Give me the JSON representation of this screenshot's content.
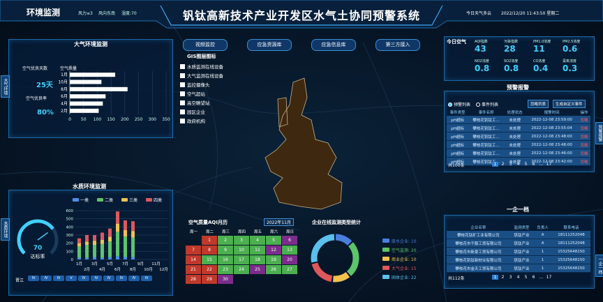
{
  "header": {
    "section": "环境监测",
    "wind_force": "风力≤3",
    "wind_dir": "风向东南",
    "humidity": "湿度:70",
    "title": "钒钛高新技术产业开发区水气土协同预警系统",
    "weather": "今日天气多云",
    "datetime": "2022/12/20 11:43:50 星期二"
  },
  "nav": [
    "视频监控",
    "应急资源库",
    "应急信息库",
    "第三方接入"
  ],
  "side_tabs": {
    "left": [
      "大气环境",
      "水质环境"
    ],
    "right": [
      "预警报警",
      "一企一档"
    ]
  },
  "air_panel": {
    "title": "大气环境监测",
    "good_days_label": "空气优良天数",
    "good_days": "25天",
    "good_rate_label": "空气优良率",
    "good_rate": "80%"
  },
  "water_panel": {
    "title": "水质环境监测",
    "site": "晋江",
    "grades": [
      "IV",
      "IV",
      "IV",
      "V",
      "IV",
      "IV",
      "IV",
      "IV",
      "IV",
      "IV"
    ]
  },
  "chart_data": [
    {
      "type": "hbar",
      "title": "空气质量",
      "categories": [
        "1月",
        "10月",
        "8月",
        "6月",
        "4月",
        "2月"
      ],
      "values": [
        165,
        115,
        210,
        130,
        120,
        105
      ],
      "color": "#ffffff",
      "xlim": [
        0,
        350
      ],
      "xticks": [
        0,
        50,
        100,
        150,
        200,
        250,
        300,
        350
      ],
      "grid": true
    },
    {
      "type": "stacked-bar",
      "categories": [
        "1月",
        "2月",
        "3月",
        "4月",
        "5月",
        "6月",
        "7月",
        "8月",
        "9月",
        "10月",
        "11月",
        "12月"
      ],
      "series": [
        {
          "name": "一类",
          "color": "#4a8fe7",
          "values": [
            20,
            20,
            30,
            20,
            30,
            40,
            30,
            30,
            0,
            0,
            0,
            0
          ]
        },
        {
          "name": "二类",
          "color": "#5cc46a",
          "values": [
            140,
            160,
            150,
            170,
            190,
            300,
            250,
            240,
            0,
            0,
            0,
            0
          ]
        },
        {
          "name": "三类",
          "color": "#f2c14e",
          "values": [
            40,
            40,
            50,
            50,
            60,
            100,
            80,
            80,
            0,
            0,
            0,
            0
          ]
        },
        {
          "name": "四类",
          "color": "#e0575b",
          "values": [
            60,
            80,
            70,
            90,
            100,
            150,
            120,
            120,
            0,
            0,
            0,
            0
          ]
        }
      ],
      "ylim": [
        0,
        600
      ],
      "yticks": [
        0,
        100,
        200,
        300,
        400,
        500,
        600
      ],
      "grid": true
    },
    {
      "type": "pie",
      "title": "企业在线监测类型统计",
      "categories": [
        "废水企业: 10",
        "空气监测: 20",
        "商业企业: 10",
        "大气企业: 15",
        "固体企业: 22"
      ],
      "values": [
        10,
        20,
        10,
        15,
        22
      ],
      "colors": [
        "#4a7fe0",
        "#5cc46a",
        "#f2c14e",
        "#e0575b",
        "#5bc0eb"
      ]
    },
    {
      "type": "gauge",
      "value": 70,
      "label": "达标率",
      "ylim": [
        0,
        100
      ],
      "color": "#3fd0ff"
    }
  ],
  "gis": {
    "title": "GIS图层图标",
    "items": [
      "水质监测在线设备",
      "大气监测在线设备",
      "监控摄像头",
      "空气超站",
      "高空瞭望站",
      "园区企业",
      "政府机构"
    ]
  },
  "calendar": {
    "title": "空气质量AQI月历",
    "month": "2022年11月",
    "weekdays": [
      "周一",
      "周二",
      "周三",
      "周四",
      "周五",
      "周六",
      "周日"
    ],
    "days": [
      1,
      2,
      3,
      4,
      5,
      6,
      7,
      8,
      9,
      10,
      11,
      12,
      13,
      14,
      15,
      16,
      17,
      18,
      19,
      20,
      21,
      22,
      23,
      24,
      25,
      26,
      27,
      28,
      29,
      30
    ],
    "colors": [
      "#c0392b",
      "#4caf50",
      "#4caf50",
      "#4caf50",
      "#4caf50",
      "#7b2d8b",
      "#c0392b",
      "#c0392b",
      "#4caf50",
      "#4caf50",
      "#4caf50",
      "#7b2d8b",
      "#4caf50",
      "#c0392b",
      "#4caf50",
      "#4caf50",
      "#4caf50",
      "#4caf50",
      "#4caf50",
      "#7b2d8b",
      "#c0392b",
      "#c0392b",
      "#4caf50",
      "#4caf50",
      "#7b2d8b",
      "#4caf50",
      "#4caf50",
      "#c0392b",
      "#c0392b",
      "#7b2d8b"
    ]
  },
  "air_today": {
    "title": "今日空气",
    "items": [
      {
        "label": "AQI指数",
        "value": 43
      },
      {
        "label": "污染指数",
        "value": 28
      },
      {
        "label": "PM1.0浓度",
        "value": 11
      },
      {
        "label": "PM2.5浓度",
        "value": 0.6
      },
      {
        "label": "NO2浓度",
        "value": 0.8
      },
      {
        "label": "SO2浓度",
        "value": 0.8
      },
      {
        "label": "CO浓度",
        "value": 0.4
      },
      {
        "label": "臭氧浓度",
        "value": 0.3
      }
    ]
  },
  "warning": {
    "title": "预警报警",
    "tabs": [
      "预警列表",
      "事件列表"
    ],
    "buttons": [
      "忽略列表",
      "生成自定义事件"
    ],
    "headers": [
      "事件类型",
      "事件名称",
      "处理状态",
      "报警时间",
      "操作"
    ],
    "rows": [
      [
        "pH超标",
        "攀枝花钒钛工…",
        "未处理",
        "2022-12-08 23:59:00",
        "忽略"
      ],
      [
        "pH超标",
        "攀枝花钒钛工…",
        "未处理",
        "2022-12-08 23:55:04",
        "忽略"
      ],
      [
        "pH超标",
        "攀枝花钒钛工…",
        "未处理",
        "2022-12-08 23:48:00",
        "忽略"
      ],
      [
        "pH超标",
        "攀枝花钒钛工…",
        "未处理",
        "2022-12-08 23:48:00",
        "忽略"
      ],
      [
        "pH超标",
        "攀枝花钒钛工…",
        "未处理",
        "2022-12-08 23:46:00",
        "忽略"
      ],
      [
        "pH超标",
        "攀枝花钒钛工…",
        "未处理",
        "2022-12-08 23:42:00",
        "忽略"
      ]
    ],
    "total": "共100条",
    "pages": [
      "1",
      "2",
      "3",
      "4",
      "5",
      "6",
      "...",
      "17"
    ]
  },
  "enterprise": {
    "title": "一企一档",
    "headers": [
      "企业名称",
      "监测类型",
      "负责人",
      "联系电话"
    ],
    "rows": [
      [
        "攀枝花钛矿工业有限公司",
        "钒钛产业",
        "A",
        "18111252048"
      ],
      [
        "攀枝花市千服工贸有限公司",
        "钒钛产业",
        "A",
        "18111252048"
      ],
      [
        "攀枝花市新豪工贸有限公司",
        "钒钛产业",
        "1",
        "15325648150"
      ],
      [
        "攀枝花钒钛新材业有限公司",
        "钒钛产业",
        "1",
        "15325648150"
      ],
      [
        "攀枝花市金天工贸有限公司",
        "钒钛产业",
        "1",
        "15325648150"
      ]
    ],
    "total": "共112条",
    "pages": [
      "1",
      "2",
      "3",
      "4",
      "5",
      "6",
      "...",
      "17"
    ]
  }
}
